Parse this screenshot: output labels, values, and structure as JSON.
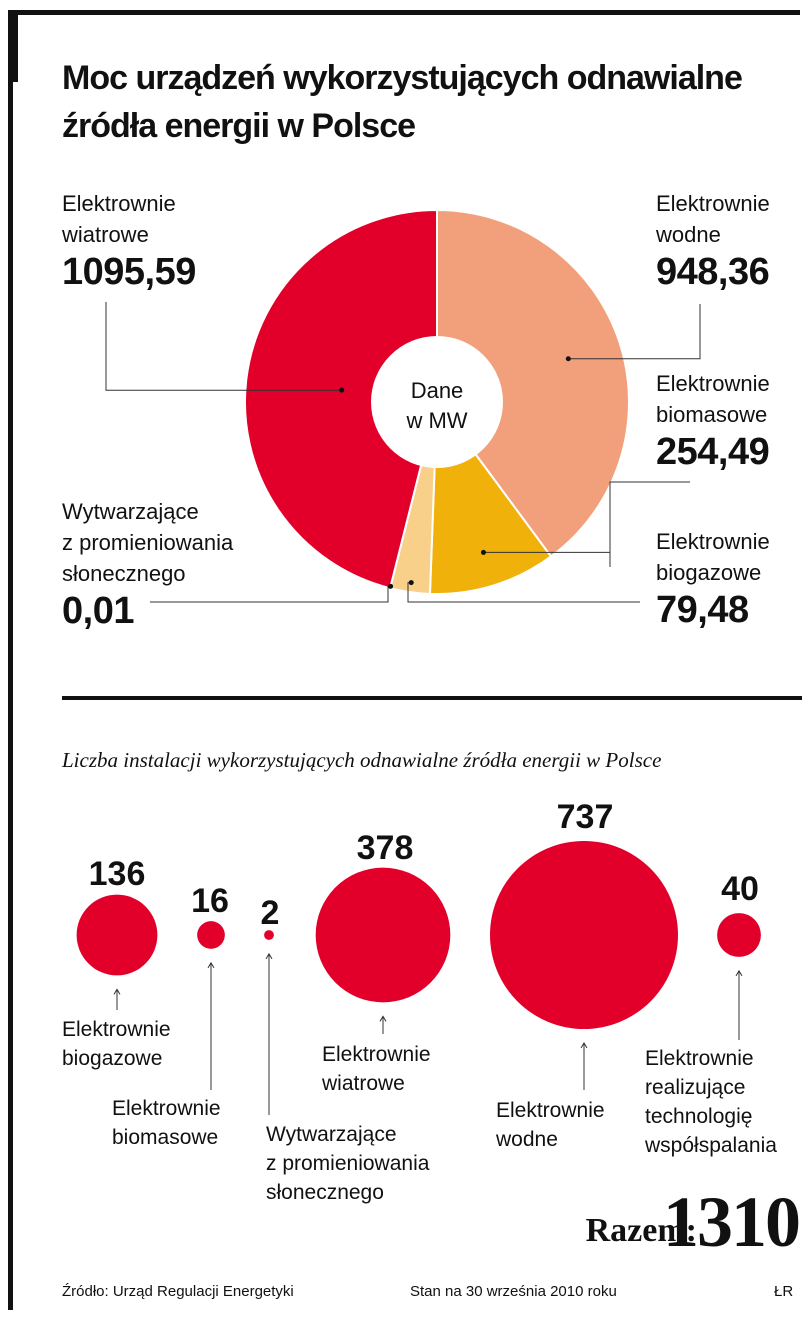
{
  "title_line1": "Moc urządzeń wykorzystujących odnawialne",
  "title_line2": "źródła energii w Polsce",
  "chart_data": [
    {
      "type": "pie",
      "title": "Moc urządzeń wykorzystujących odnawialne źródła energii w Polsce",
      "center_label": [
        "Dane",
        "w MW"
      ],
      "unit": "MW",
      "slices": [
        {
          "label": [
            "Elektrownie",
            "wodne"
          ],
          "value": 948.36,
          "display": "948,36",
          "color": "#f2a07b"
        },
        {
          "label": [
            "Elektrownie",
            "biomasowe"
          ],
          "value": 254.49,
          "display": "254,49",
          "color": "#f0b10a"
        },
        {
          "label": [
            "Elektrownie",
            "biogazowe"
          ],
          "value": 79.48,
          "display": "79,48",
          "color": "#f8d08a"
        },
        {
          "label": [
            "Wytwarzające",
            "z promieniowania",
            "słonecznego"
          ],
          "value": 0.01,
          "display": "0,01",
          "color": "#e8de9a"
        },
        {
          "label": [
            "Elektrownie",
            "wiatrowe"
          ],
          "value": 1095.59,
          "display": "1095,59",
          "color": "#e2002b"
        }
      ]
    },
    {
      "type": "bubble",
      "title": "Liczba instalacji wykorzystujących odnawialne źródła energii w Polsce",
      "color": "#e2002b",
      "items": [
        {
          "label": [
            "Elektrownie",
            "biogazowe"
          ],
          "value": 136
        },
        {
          "label": [
            "Elektrownie",
            "biomasowe"
          ],
          "value": 16
        },
        {
          "label": [
            "Wytwarzające",
            "z promieniowania",
            "słonecznego"
          ],
          "value": 2
        },
        {
          "label": [
            "Elektrownie",
            "wiatrowe"
          ],
          "value": 378
        },
        {
          "label": [
            "Elektrownie",
            "wodne"
          ],
          "value": 737
        },
        {
          "label": [
            "Elektrownie",
            "realizujące",
            "technologię",
            "współspalania"
          ],
          "value": 40
        }
      ],
      "total_label": "Razem:",
      "total_value": "1310"
    }
  ],
  "footer": {
    "source": "Źródło: Urząd Regulacji Energetyki",
    "date": "Stan na 30 września 2010 roku",
    "author": "ŁR"
  }
}
